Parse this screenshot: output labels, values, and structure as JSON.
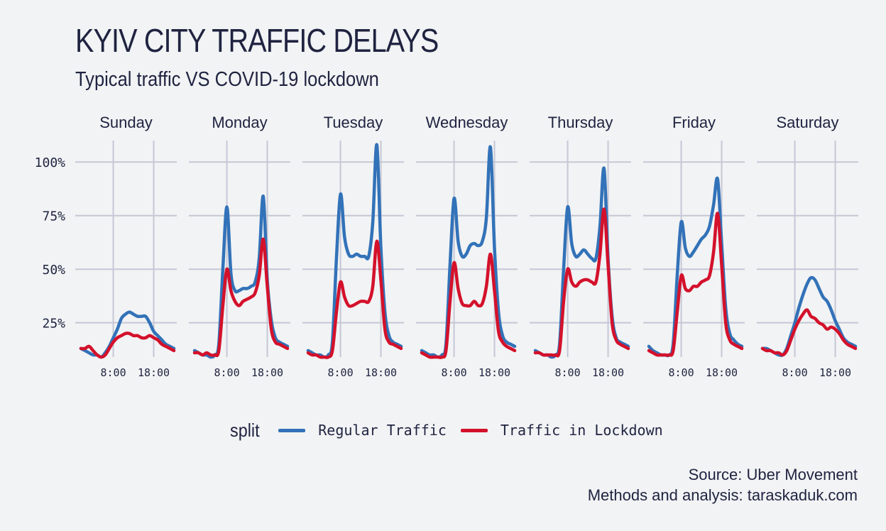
{
  "title": "KYIV CITY TRAFFIC DELAYS",
  "subtitle": "Typical traffic VS COVID-19 lockdown",
  "caption": {
    "source": "Source: Uber Movement",
    "credit": "Methods and analysis: taraskaduk.com"
  },
  "legend": {
    "title": "split",
    "items": [
      {
        "label": "Regular Traffic",
        "color": "#3272b8"
      },
      {
        "label": "Traffic in Lockdown",
        "color": "#d4112b"
      }
    ]
  },
  "chart_data": {
    "type": "line",
    "facets": [
      "Sunday",
      "Monday",
      "Tuesday",
      "Wednesday",
      "Thursday",
      "Friday",
      "Saturday"
    ],
    "x_unit": "hour of day",
    "y_unit": "percent",
    "xlim": [
      0,
      23
    ],
    "ylim": [
      9,
      110
    ],
    "x_ticks": [
      {
        "value": 8,
        "label": "8:00"
      },
      {
        "value": 18,
        "label": "18:00"
      }
    ],
    "y_ticks": [
      {
        "value": 25,
        "label": "25%"
      },
      {
        "value": 50,
        "label": "50%"
      },
      {
        "value": 75,
        "label": "75%"
      },
      {
        "value": 100,
        "label": "100%"
      }
    ],
    "grid": true,
    "legend_position": "bottom",
    "x": [
      0,
      1,
      2,
      3,
      4,
      5,
      6,
      7,
      8,
      9,
      10,
      11,
      12,
      13,
      14,
      15,
      16,
      17,
      18,
      19,
      20,
      21,
      22,
      23
    ],
    "series": [
      {
        "name": "Regular Traffic",
        "color": "#3272b8",
        "values": {
          "Sunday": [
            13,
            12,
            11,
            10,
            10,
            9,
            11,
            14,
            18,
            22,
            27,
            29,
            30,
            29,
            28,
            28,
            28,
            25,
            21,
            19,
            17,
            15,
            14,
            13
          ],
          "Monday": [
            12,
            11,
            10,
            10,
            9,
            10,
            15,
            50,
            79,
            48,
            40,
            40,
            41,
            41,
            42,
            44,
            55,
            84,
            45,
            26,
            18,
            16,
            15,
            14
          ],
          "Tuesday": [
            12,
            11,
            10,
            10,
            9,
            10,
            16,
            55,
            85,
            65,
            57,
            56,
            57,
            56,
            56,
            56,
            72,
            108,
            60,
            30,
            19,
            16,
            15,
            14
          ],
          "Wednesday": [
            12,
            11,
            10,
            10,
            9,
            10,
            15,
            52,
            83,
            63,
            56,
            57,
            61,
            62,
            61,
            63,
            74,
            107,
            60,
            30,
            19,
            16,
            15,
            14
          ],
          "Thursday": [
            12,
            11,
            10,
            10,
            9,
            10,
            15,
            50,
            79,
            62,
            56,
            57,
            59,
            57,
            55,
            55,
            70,
            97,
            55,
            28,
            18,
            16,
            15,
            14
          ],
          "Friday": [
            14,
            12,
            11,
            10,
            10,
            10,
            15,
            47,
            72,
            60,
            56,
            58,
            61,
            64,
            66,
            70,
            80,
            92,
            62,
            32,
            20,
            17,
            15,
            14
          ],
          "Saturday": [
            13,
            13,
            12,
            11,
            10,
            10,
            13,
            19,
            25,
            32,
            38,
            43,
            46,
            45,
            41,
            37,
            35,
            31,
            26,
            22,
            18,
            16,
            15,
            14
          ]
        }
      },
      {
        "name": "Traffic in Lockdown",
        "color": "#d4112b",
        "values": {
          "Sunday": [
            13,
            13,
            14,
            12,
            10,
            9,
            10,
            13,
            16,
            18,
            19,
            20,
            20,
            19,
            19,
            18,
            18,
            19,
            18,
            17,
            15,
            14,
            13,
            12
          ],
          "Monday": [
            11,
            11,
            10,
            11,
            10,
            10,
            12,
            33,
            50,
            40,
            35,
            33,
            35,
            36,
            37,
            39,
            47,
            64,
            42,
            22,
            16,
            15,
            14,
            13
          ],
          "Tuesday": [
            11,
            10,
            10,
            9,
            9,
            9,
            12,
            30,
            44,
            37,
            33,
            33,
            34,
            35,
            35,
            35,
            42,
            63,
            45,
            22,
            16,
            15,
            14,
            13
          ],
          "Wednesday": [
            11,
            10,
            9,
            9,
            9,
            9,
            12,
            35,
            53,
            41,
            34,
            33,
            33,
            35,
            33,
            34,
            42,
            57,
            40,
            21,
            16,
            14,
            13,
            12
          ],
          "Thursday": [
            11,
            11,
            10,
            10,
            10,
            10,
            12,
            35,
            50,
            44,
            42,
            44,
            45,
            45,
            44,
            44,
            57,
            78,
            52,
            25,
            17,
            15,
            14,
            13
          ],
          "Friday": [
            12,
            11,
            10,
            10,
            10,
            10,
            12,
            30,
            47,
            41,
            40,
            42,
            42,
            44,
            45,
            47,
            58,
            76,
            52,
            25,
            17,
            15,
            14,
            13
          ],
          "Saturday": [
            13,
            12,
            12,
            11,
            11,
            10,
            12,
            17,
            22,
            26,
            29,
            31,
            28,
            27,
            25,
            24,
            22,
            23,
            22,
            20,
            17,
            15,
            14,
            13
          ]
        }
      }
    ]
  }
}
